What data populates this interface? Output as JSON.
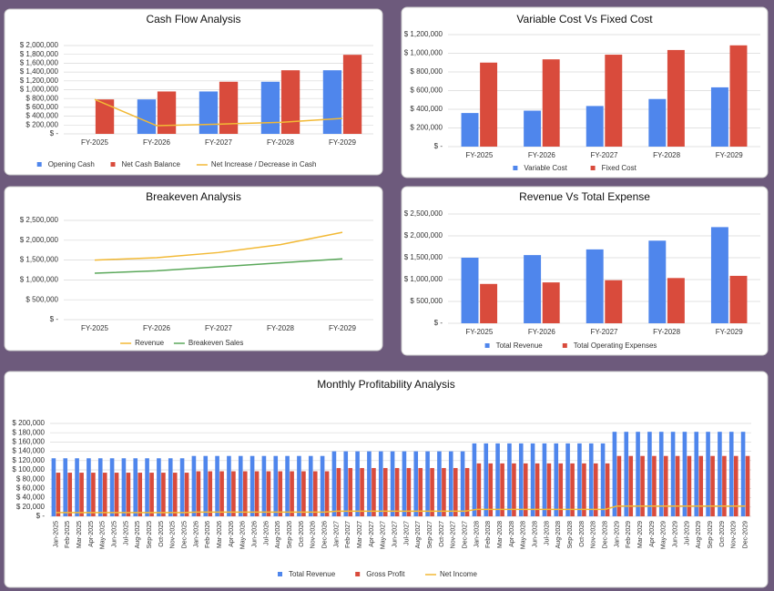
{
  "chart_data": [
    {
      "type": "bar",
      "title": "Cash Flow Analysis",
      "grid": true,
      "categories": [
        "FY-2025",
        "FY-2026",
        "FY-2027",
        "FY-2028",
        "FY-2029"
      ],
      "ylim": [
        0,
        2000000
      ],
      "yticks": [
        {
          "value": 0,
          "label": "$ -"
        },
        {
          "value": 200000,
          "label": "$ 200,000"
        },
        {
          "value": 400000,
          "label": "$ 400,000"
        },
        {
          "value": 600000,
          "label": "$ 600,000"
        },
        {
          "value": 800000,
          "label": "$ 800,000"
        },
        {
          "value": 1000000,
          "label": "$ 1,000,000"
        },
        {
          "value": 1200000,
          "label": "$ 1,200,000"
        },
        {
          "value": 1400000,
          "label": "$ 1,400,000"
        },
        {
          "value": 1600000,
          "label": "$ 1,600,000"
        },
        {
          "value": 1800000,
          "label": "$ 1,800,000"
        },
        {
          "value": 2000000,
          "label": "$ 2,000,000"
        }
      ],
      "series": [
        {
          "name": "Opening Cash",
          "color": "#4f86ec",
          "values": [
            0,
            780000,
            960000,
            1180000,
            1440000
          ]
        },
        {
          "name": "Net Cash Balance",
          "color": "#d94b3c",
          "values": [
            780000,
            960000,
            1180000,
            1440000,
            1790000
          ]
        },
        {
          "name": "Net Increase / Decrease in Cash",
          "color": "#f2b935",
          "type": "line",
          "values": [
            780000,
            185000,
            220000,
            260000,
            350000
          ]
        }
      ]
    },
    {
      "type": "bar",
      "title": "Variable Cost Vs Fixed Cost",
      "grid": true,
      "categories": [
        "FY-2025",
        "FY-2026",
        "FY-2027",
        "FY-2028",
        "FY-2029"
      ],
      "ylim": [
        0,
        1200000
      ],
      "yticks": [
        {
          "value": 0,
          "label": "$ -"
        },
        {
          "value": 200000,
          "label": "$ 200,000"
        },
        {
          "value": 400000,
          "label": "$ 400,000"
        },
        {
          "value": 600000,
          "label": "$ 600,000"
        },
        {
          "value": 800000,
          "label": "$ 800,000"
        },
        {
          "value": 1000000,
          "label": "$ 1,000,000"
        },
        {
          "value": 1200000,
          "label": "$ 1,200,000"
        }
      ],
      "series": [
        {
          "name": "Variable Cost",
          "color": "#4f86ec",
          "values": [
            360000,
            385000,
            435000,
            510000,
            635000
          ]
        },
        {
          "name": "Fixed Cost",
          "color": "#d94b3c",
          "values": [
            900000,
            935000,
            985000,
            1035000,
            1085000
          ]
        }
      ]
    },
    {
      "type": "line",
      "title": "Breakeven Analysis",
      "grid": true,
      "categories": [
        "FY-2025",
        "FY-2026",
        "FY-2027",
        "FY-2028",
        "FY-2029"
      ],
      "ylim": [
        0,
        2500000
      ],
      "yticks": [
        {
          "value": 0,
          "label": "$ -"
        },
        {
          "value": 500000,
          "label": "$ 500,000"
        },
        {
          "value": 1000000,
          "label": "$ 1,000,000"
        },
        {
          "value": 1500000,
          "label": "$ 1,500,000"
        },
        {
          "value": 2000000,
          "label": "$ 2,000,000"
        },
        {
          "value": 2500000,
          "label": "$ 2,500,000"
        }
      ],
      "series": [
        {
          "name": "Revenue",
          "color": "#f2b935",
          "values": [
            1500000,
            1560000,
            1690000,
            1890000,
            2200000
          ]
        },
        {
          "name": "Breakeven Sales",
          "color": "#5aa85a",
          "values": [
            1170000,
            1230000,
            1330000,
            1430000,
            1530000
          ]
        }
      ]
    },
    {
      "type": "bar",
      "title": "Revenue Vs Total Expense",
      "grid": true,
      "categories": [
        "FY-2025",
        "FY-2026",
        "FY-2027",
        "FY-2028",
        "FY-2029"
      ],
      "ylim": [
        0,
        2500000
      ],
      "yticks": [
        {
          "value": 0,
          "label": "$ -"
        },
        {
          "value": 500000,
          "label": "$ 500,000"
        },
        {
          "value": 1000000,
          "label": "$ 1,000,000"
        },
        {
          "value": 1500000,
          "label": "$ 1,500,000"
        },
        {
          "value": 2000000,
          "label": "$ 2,000,000"
        },
        {
          "value": 2500000,
          "label": "$ 2,500,000"
        }
      ],
      "series": [
        {
          "name": "Total Revenue",
          "color": "#4f86ec",
          "values": [
            1500000,
            1560000,
            1690000,
            1890000,
            2200000
          ]
        },
        {
          "name": "Total Operating Expenses",
          "color": "#d94b3c",
          "values": [
            900000,
            935000,
            985000,
            1035000,
            1085000
          ]
        }
      ]
    },
    {
      "type": "bar",
      "title": "Monthly Profitability Analysis",
      "grid": true,
      "categories": [
        "Jan-2025",
        "Feb-2025",
        "Mar-2025",
        "Apr-2025",
        "May-2025",
        "Jun-2025",
        "Jul-2025",
        "Aug-2025",
        "Sep-2025",
        "Oct-2025",
        "Nov-2025",
        "Dec-2025",
        "Jan-2026",
        "Feb-2026",
        "Mar-2026",
        "Apr-2026",
        "May-2026",
        "Jun-2026",
        "Jul-2026",
        "Aug-2026",
        "Sep-2026",
        "Oct-2026",
        "Nov-2026",
        "Dec-2026",
        "Jan-2027",
        "Feb-2027",
        "Mar-2027",
        "Apr-2027",
        "May-2027",
        "Jun-2027",
        "Jul-2027",
        "Aug-2027",
        "Sep-2027",
        "Oct-2027",
        "Nov-2027",
        "Dec-2027",
        "Jan-2028",
        "Feb-2028",
        "Mar-2028",
        "Apr-2028",
        "May-2028",
        "Jun-2028",
        "Jul-2028",
        "Aug-2028",
        "Sep-2028",
        "Oct-2028",
        "Nov-2028",
        "Dec-2028",
        "Jan-2029",
        "Feb-2029",
        "Mar-2029",
        "Apr-2029",
        "May-2029",
        "Jun-2029",
        "Jul-2029",
        "Aug-2029",
        "Sep-2029",
        "Oct-2029",
        "Nov-2029",
        "Dec-2029"
      ],
      "ylim": [
        0,
        200000
      ],
      "yticks": [
        {
          "value": 0,
          "label": "$ -"
        },
        {
          "value": 20000,
          "label": "$ 20,000"
        },
        {
          "value": 40000,
          "label": "$ 40,000"
        },
        {
          "value": 60000,
          "label": "$ 60,000"
        },
        {
          "value": 80000,
          "label": "$ 80,000"
        },
        {
          "value": 100000,
          "label": "$ 100,000"
        },
        {
          "value": 120000,
          "label": "$ 120,000"
        },
        {
          "value": 140000,
          "label": "$ 140,000"
        },
        {
          "value": 160000,
          "label": "$ 160,000"
        },
        {
          "value": 180000,
          "label": "$ 180,000"
        },
        {
          "value": 200000,
          "label": "$ 200,000"
        }
      ],
      "series": [
        {
          "name": "Total Revenue",
          "color": "#4f86ec",
          "values": [
            125000,
            125000,
            125000,
            125000,
            125000,
            125000,
            125000,
            125000,
            125000,
            125000,
            125000,
            125000,
            130000,
            130000,
            130000,
            130000,
            130000,
            130000,
            130000,
            130000,
            130000,
            130000,
            130000,
            130000,
            140000,
            140000,
            140000,
            140000,
            140000,
            140000,
            140000,
            140000,
            140000,
            140000,
            140000,
            140000,
            157000,
            157000,
            157000,
            157000,
            157000,
            157000,
            157000,
            157000,
            157000,
            157000,
            157000,
            157000,
            182000,
            182000,
            182000,
            182000,
            182000,
            182000,
            182000,
            182000,
            182000,
            182000,
            182000,
            182000
          ]
        },
        {
          "name": "Gross Profit",
          "color": "#d94b3c",
          "values": [
            94000,
            94000,
            94000,
            94000,
            94000,
            94000,
            94000,
            94000,
            94000,
            94000,
            94000,
            94000,
            97000,
            97000,
            97000,
            97000,
            97000,
            97000,
            97000,
            97000,
            97000,
            97000,
            97000,
            97000,
            104000,
            104000,
            104000,
            104000,
            104000,
            104000,
            104000,
            104000,
            104000,
            104000,
            104000,
            104000,
            114000,
            114000,
            114000,
            114000,
            114000,
            114000,
            114000,
            114000,
            114000,
            114000,
            114000,
            114000,
            130000,
            130000,
            130000,
            130000,
            130000,
            130000,
            130000,
            130000,
            130000,
            130000,
            130000,
            130000
          ]
        },
        {
          "name": "Net Income",
          "color": "#f2b935",
          "type": "line",
          "values": [
            8000,
            8000,
            8000,
            8000,
            8000,
            8000,
            8000,
            8000,
            8000,
            8000,
            8000,
            8000,
            9000,
            9000,
            9000,
            9000,
            9000,
            9000,
            9000,
            9000,
            9000,
            9000,
            9000,
            9000,
            11000,
            11000,
            11000,
            11000,
            11000,
            11000,
            11000,
            11000,
            11000,
            11000,
            11000,
            11000,
            15000,
            15000,
            15000,
            15000,
            15000,
            15000,
            15000,
            15000,
            15000,
            15000,
            15000,
            15000,
            22000,
            22000,
            22000,
            22000,
            22000,
            22000,
            22000,
            22000,
            22000,
            22000,
            22000,
            22000
          ]
        }
      ]
    }
  ]
}
